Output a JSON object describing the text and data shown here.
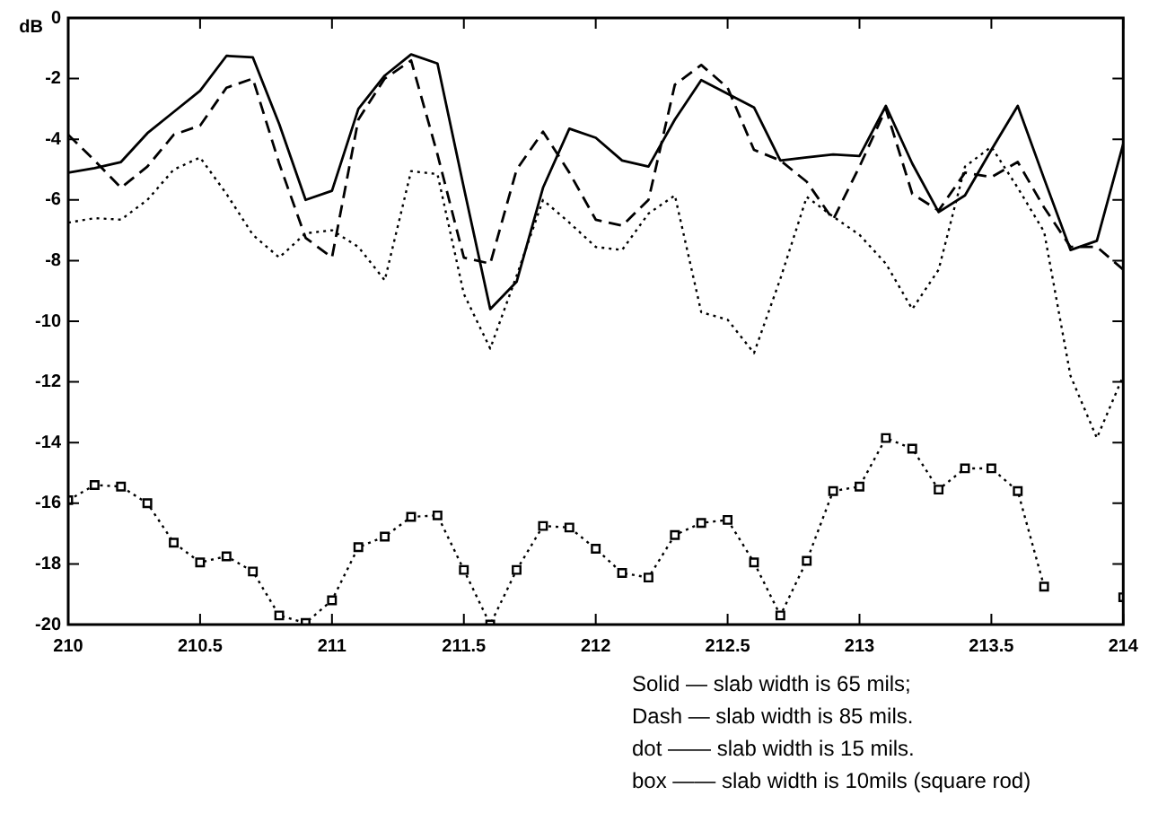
{
  "chart_data": {
    "type": "line",
    "ylabel": "dB",
    "x": [
      210,
      210.1,
      210.2,
      210.3,
      210.4,
      210.5,
      210.6,
      210.7,
      210.8,
      210.9,
      211,
      211.1,
      211.2,
      211.3,
      211.4,
      211.5,
      211.6,
      211.7,
      211.8,
      211.9,
      212,
      212.1,
      212.2,
      212.3,
      212.4,
      212.5,
      212.6,
      212.7,
      212.8,
      212.9,
      213,
      213.1,
      213.2,
      213.3,
      213.4,
      213.5,
      213.6,
      213.7,
      213.8,
      213.9,
      214
    ],
    "series": [
      {
        "color": "#000000",
        "line_style": "solid",
        "marker": "none",
        "values": [
          -5.1,
          -4.95,
          -4.75,
          -3.8,
          -3.1,
          -2.4,
          -1.25,
          -1.3,
          -3.5,
          -6.0,
          -5.7,
          -3.0,
          -1.9,
          -1.2,
          -1.5,
          -5.6,
          -9.6,
          -8.7,
          -5.6,
          -3.65,
          -3.95,
          -4.7,
          -4.9,
          -3.35,
          -2.05,
          -2.5,
          -2.95,
          -4.7,
          -4.6,
          -4.5,
          -4.55,
          -2.9,
          -4.8,
          -6.4,
          -5.85,
          -4.35,
          -2.9,
          -5.3,
          -7.65,
          -7.35,
          -4.15
        ]
      },
      {
        "color": "#000000",
        "line_style": "dashed",
        "marker": "none",
        "values": [
          -3.85,
          -4.7,
          -5.6,
          -4.9,
          -3.85,
          -3.55,
          -2.3,
          -2.0,
          -4.8,
          -7.25,
          -7.9,
          -3.35,
          -2.0,
          -1.4,
          -4.5,
          -7.9,
          -8.1,
          -5.0,
          -3.75,
          -5.1,
          -6.65,
          -6.85,
          -6.0,
          -2.2,
          -1.55,
          -2.3,
          -4.35,
          -4.7,
          -5.4,
          -6.65,
          -4.9,
          -3.0,
          -5.8,
          -6.35,
          -5.1,
          -5.25,
          -4.75,
          -6.25,
          -7.55,
          -7.55,
          -8.3
        ]
      },
      {
        "color": "#000000",
        "line_style": "dotted",
        "marker": "none",
        "values": [
          -6.75,
          -6.6,
          -6.65,
          -6.0,
          -5.0,
          -4.6,
          -5.8,
          -7.15,
          -7.9,
          -7.1,
          -7.0,
          -7.55,
          -8.65,
          -5.05,
          -5.15,
          -9.1,
          -10.9,
          -8.5,
          -6.0,
          -6.75,
          -7.55,
          -7.65,
          -6.45,
          -5.85,
          -9.7,
          -9.95,
          -11.05,
          -8.6,
          -5.9,
          -6.55,
          -7.15,
          -8.1,
          -9.6,
          -8.3,
          -4.9,
          -4.25,
          -5.6,
          -7.05,
          -11.8,
          -13.85,
          -11.8
        ]
      },
      {
        "color": "#000000",
        "line_style": "dotted",
        "marker": "square",
        "values": [
          -15.9,
          -15.4,
          -15.45,
          -16.0,
          -17.3,
          -17.95,
          -17.75,
          -18.25,
          -19.7,
          -19.95,
          -19.2,
          -17.45,
          -17.1,
          -16.45,
          -16.4,
          -18.2,
          -20,
          -18.2,
          -16.75,
          -16.8,
          -17.5,
          -18.3,
          -18.45,
          -17.05,
          -16.65,
          -16.55,
          -17.95,
          -19.7,
          -17.9,
          -15.6,
          -15.45,
          -13.85,
          -14.2,
          -15.55,
          -14.85,
          -14.85,
          -15.6,
          -18.75,
          null,
          null,
          -19.1
        ]
      }
    ],
    "xlim": [
      210,
      214
    ],
    "xticks": [
      210,
      210.5,
      211,
      211.5,
      212,
      212.5,
      213,
      213.5,
      214
    ],
    "ylim": [
      -20,
      0
    ],
    "yticks": [
      0,
      -2,
      -4,
      -6,
      -8,
      -10,
      -12,
      -14,
      -16,
      -18,
      -20
    ],
    "grid": false,
    "legend": false,
    "annotations": [
      "Solid — slab width is 65 mils;",
      "Dash — slab width is 85 mils.",
      "dot —— slab width is 15 mils.",
      "box —— slab width is 10mils (square rod)"
    ]
  }
}
